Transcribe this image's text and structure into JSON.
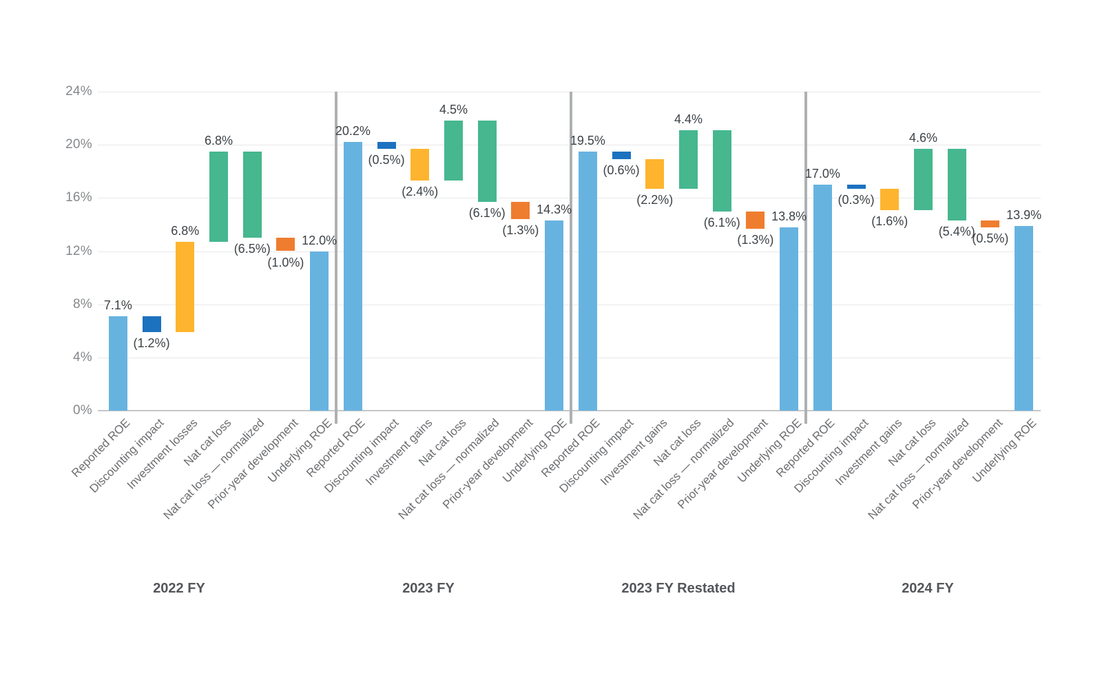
{
  "chart_data": {
    "type": "bar",
    "subtype": "grouped-waterfall",
    "title": "",
    "xlabel": "",
    "ylabel": "",
    "legend": "none",
    "grid": true,
    "y_axis": {
      "min": 0,
      "max": 24,
      "step": 4,
      "tick_labels": [
        "0%",
        "4%",
        "8%",
        "12%",
        "16%",
        "20%",
        "24%"
      ]
    },
    "colors": {
      "roe": "#67B3E0",
      "discounting": "#1C72BF",
      "investment": "#FEB42E",
      "nat_cat": "#46B78F",
      "prior_year": "#EF7D30",
      "grid_line": "#E8E9EA",
      "axis_line": "#C5C6C8",
      "divider": "#AEB0B3",
      "value_label": "#3E4347",
      "tick_label": "#85888B",
      "category_label": "#6B6D70",
      "group_label": "#54565A",
      "background": "#FFFFFF"
    },
    "groups": [
      {
        "label": "2022 FY",
        "bars": [
          {
            "category": "Reported ROE",
            "series": "roe",
            "value": 7.1,
            "value_label": "7.1%",
            "from": 0,
            "to": 7.1,
            "label_position": "above"
          },
          {
            "category": "Discounting impact",
            "series": "discounting",
            "value": -1.2,
            "value_label": "(1.2%)",
            "from": 7.1,
            "to": 5.9,
            "label_position": "below"
          },
          {
            "category": "Investment losses",
            "series": "investment",
            "value": 6.8,
            "value_label": "6.8%",
            "from": 5.9,
            "to": 12.7,
            "label_position": "above"
          },
          {
            "category": "Nat cat loss",
            "series": "nat_cat",
            "value": 6.8,
            "value_label": "6.8%",
            "from": 12.7,
            "to": 19.5,
            "label_position": "above"
          },
          {
            "category": "Nat cat loss — normalized",
            "series": "nat_cat",
            "value": -6.5,
            "value_label": "(6.5%)",
            "from": 19.5,
            "to": 13.0,
            "label_position": "below"
          },
          {
            "category": "Prior-year development",
            "series": "prior_year",
            "value": -1.0,
            "value_label": "(1.0%)",
            "from": 13.0,
            "to": 12.0,
            "label_position": "below"
          },
          {
            "category": "Underlying ROE",
            "series": "roe",
            "value": 12.0,
            "value_label": "12.0%",
            "from": 0,
            "to": 12.0,
            "label_position": "above"
          }
        ]
      },
      {
        "label": "2023 FY",
        "bars": [
          {
            "category": "Reported ROE",
            "series": "roe",
            "value": 20.2,
            "value_label": "20.2%",
            "from": 0,
            "to": 20.2,
            "label_position": "above"
          },
          {
            "category": "Discounting impact",
            "series": "discounting",
            "value": -0.5,
            "value_label": "(0.5%)",
            "from": 20.2,
            "to": 19.7,
            "label_position": "below"
          },
          {
            "category": "Investment gains",
            "series": "investment",
            "value": -2.4,
            "value_label": "(2.4%)",
            "from": 19.7,
            "to": 17.3,
            "label_position": "below"
          },
          {
            "category": "Nat cat loss",
            "series": "nat_cat",
            "value": 4.5,
            "value_label": "4.5%",
            "from": 17.3,
            "to": 21.8,
            "label_position": "above"
          },
          {
            "category": "Nat cat loss — normalized",
            "series": "nat_cat",
            "value": -6.1,
            "value_label": "(6.1%)",
            "from": 21.8,
            "to": 15.7,
            "label_position": "below"
          },
          {
            "category": "Prior-year development",
            "series": "prior_year",
            "value": -1.3,
            "value_label": "(1.3%)",
            "from": 15.7,
            "to": 14.4,
            "label_position": "below"
          },
          {
            "category": "Underlying ROE",
            "series": "roe",
            "value": 14.3,
            "value_label": "14.3%",
            "from": 0,
            "to": 14.3,
            "label_position": "above"
          }
        ]
      },
      {
        "label": "2023 FY Restated",
        "bars": [
          {
            "category": "Reported ROE",
            "series": "roe",
            "value": 19.5,
            "value_label": "19.5%",
            "from": 0,
            "to": 19.5,
            "label_position": "above"
          },
          {
            "category": "Discounting impact",
            "series": "discounting",
            "value": -0.6,
            "value_label": "(0.6%)",
            "from": 19.5,
            "to": 18.9,
            "label_position": "below"
          },
          {
            "category": "Investment gains",
            "series": "investment",
            "value": -2.2,
            "value_label": "(2.2%)",
            "from": 18.9,
            "to": 16.7,
            "label_position": "below"
          },
          {
            "category": "Nat cat loss",
            "series": "nat_cat",
            "value": 4.4,
            "value_label": "4.4%",
            "from": 16.7,
            "to": 21.1,
            "label_position": "above"
          },
          {
            "category": "Nat cat loss — normalized",
            "series": "nat_cat",
            "value": -6.1,
            "value_label": "(6.1%)",
            "from": 21.1,
            "to": 15.0,
            "label_position": "below"
          },
          {
            "category": "Prior-year development",
            "series": "prior_year",
            "value": -1.3,
            "value_label": "(1.3%)",
            "from": 15.0,
            "to": 13.7,
            "label_position": "below"
          },
          {
            "category": "Underlying ROE",
            "series": "roe",
            "value": 13.8,
            "value_label": "13.8%",
            "from": 0,
            "to": 13.8,
            "label_position": "above"
          }
        ]
      },
      {
        "label": "2024 FY",
        "bars": [
          {
            "category": "Reported ROE",
            "series": "roe",
            "value": 17.0,
            "value_label": "17.0%",
            "from": 0,
            "to": 17.0,
            "label_position": "above"
          },
          {
            "category": "Discounting impact",
            "series": "discounting",
            "value": -0.3,
            "value_label": "(0.3%)",
            "from": 17.0,
            "to": 16.7,
            "label_position": "below"
          },
          {
            "category": "Investment gains",
            "series": "investment",
            "value": -1.6,
            "value_label": "(1.6%)",
            "from": 16.7,
            "to": 15.1,
            "label_position": "below"
          },
          {
            "category": "Nat cat loss",
            "series": "nat_cat",
            "value": 4.6,
            "value_label": "4.6%",
            "from": 15.1,
            "to": 19.7,
            "label_position": "above"
          },
          {
            "category": "Nat cat loss — normalized",
            "series": "nat_cat",
            "value": -5.4,
            "value_label": "(5.4%)",
            "from": 19.7,
            "to": 14.3,
            "label_position": "below"
          },
          {
            "category": "Prior-year development",
            "series": "prior_year",
            "value": -0.5,
            "value_label": "(0.5%)",
            "from": 14.3,
            "to": 13.8,
            "label_position": "below"
          },
          {
            "category": "Underlying ROE",
            "series": "roe",
            "value": 13.9,
            "value_label": "13.9%",
            "from": 0,
            "to": 13.9,
            "label_position": "above"
          }
        ]
      }
    ]
  }
}
